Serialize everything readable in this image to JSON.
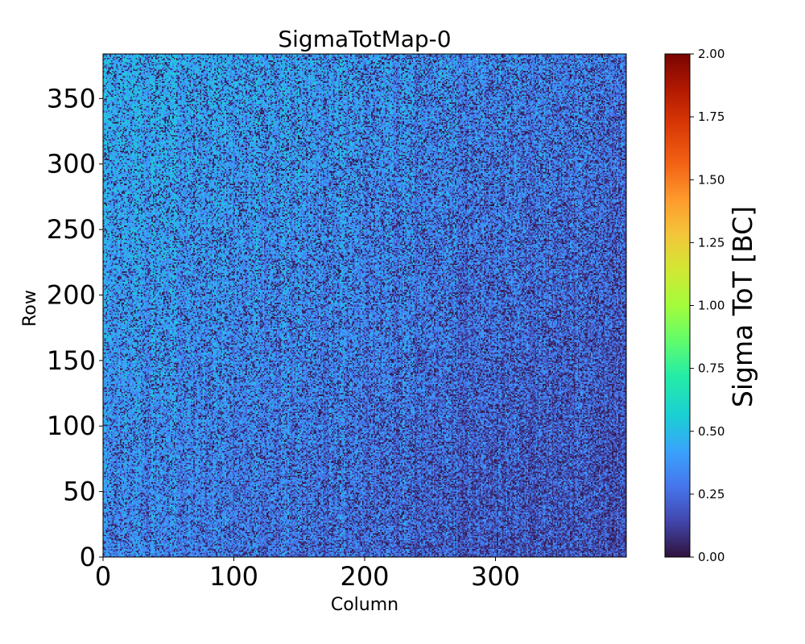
{
  "chart_data": {
    "type": "heatmap",
    "title": "SigmaTotMap-0",
    "xlabel": "Column",
    "ylabel": "Row",
    "xlim": [
      0,
      400
    ],
    "ylim": [
      0,
      384
    ],
    "x_ticks": [
      0,
      100,
      200,
      300
    ],
    "x_tick_labels": [
      "0",
      "100",
      "200",
      "300"
    ],
    "y_ticks": [
      0,
      50,
      100,
      150,
      200,
      250,
      300,
      350
    ],
    "y_tick_labels": [
      "0",
      "50",
      "100",
      "150",
      "200",
      "250",
      "300",
      "350"
    ],
    "colorbar": {
      "label": "Sigma ToT [BC]",
      "range": [
        0.0,
        2.0
      ],
      "ticks": [
        0.0,
        0.25,
        0.5,
        0.75,
        1.0,
        1.25,
        1.5,
        1.75,
        2.0
      ],
      "tick_labels": [
        "0.00",
        "0.25",
        "0.50",
        "0.75",
        "1.00",
        "1.25",
        "1.50",
        "1.75",
        "2.00"
      ],
      "colormap": "turbo"
    },
    "value_distribution": {
      "typical_low": 0.0,
      "typical_high": 0.55,
      "description_trend": "higher values toward top-left, lower values toward bottom-right"
    }
  }
}
